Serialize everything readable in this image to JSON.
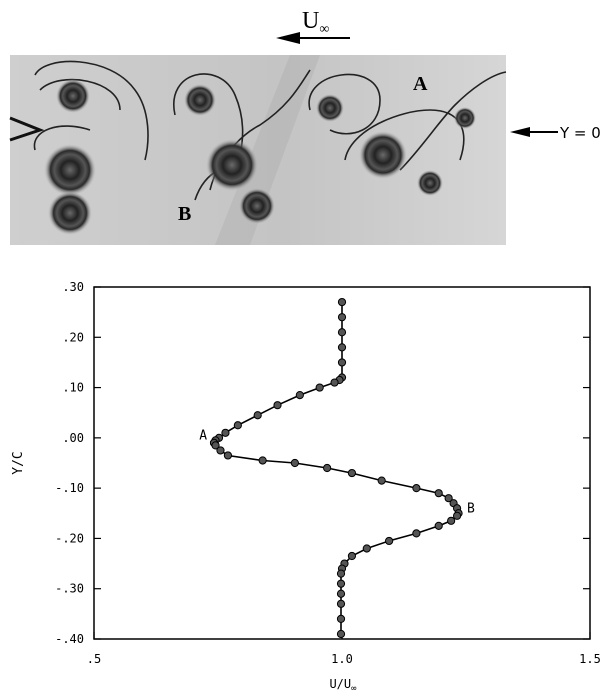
{
  "photo": {
    "freestream_label": "U",
    "freestream_subscript": "∞",
    "label_a": "A",
    "label_b": "B",
    "y0_label": "Y = 0"
  },
  "chart_data": {
    "type": "line",
    "xlabel": "U/U",
    "xlabel_subscript": "∞",
    "ylabel": "Y/C",
    "xlim": [
      0.5,
      1.5
    ],
    "ylim": [
      -0.4,
      0.3
    ],
    "xticks": [
      0.5,
      1.0,
      1.5
    ],
    "xtick_labels": [
      ".5",
      "1.0",
      "1.5"
    ],
    "yticks": [
      0.3,
      0.2,
      0.1,
      0.0,
      -0.1,
      -0.2,
      -0.3,
      -0.4
    ],
    "ytick_labels": [
      ".30",
      ".20",
      ".10",
      ".00",
      "-.10",
      "-.20",
      "-.30",
      "-.40"
    ],
    "grid": false,
    "series": [
      {
        "x": [
          1.0,
          1.0,
          1.0,
          1.0,
          1.0,
          1.0,
          0.995,
          0.985,
          0.955,
          0.915,
          0.87,
          0.83,
          0.79,
          0.765,
          0.752,
          0.745,
          0.742,
          0.742,
          0.745,
          0.755,
          0.77,
          0.84,
          0.905,
          0.97,
          1.02,
          1.08,
          1.15,
          1.195,
          1.215,
          1.225,
          1.232,
          1.235,
          1.232,
          1.22,
          1.195,
          1.15,
          1.095,
          1.05,
          1.02,
          1.005,
          1.0,
          0.998,
          0.998,
          0.998,
          0.998,
          0.998,
          0.998
        ],
        "y": [
          0.27,
          0.24,
          0.21,
          0.18,
          0.15,
          0.12,
          0.115,
          0.11,
          0.1,
          0.085,
          0.065,
          0.045,
          0.025,
          0.01,
          0.0,
          -0.005,
          -0.01,
          -0.01,
          -0.015,
          -0.025,
          -0.035,
          -0.045,
          -0.05,
          -0.06,
          -0.07,
          -0.085,
          -0.1,
          -0.11,
          -0.12,
          -0.13,
          -0.14,
          -0.15,
          -0.155,
          -0.165,
          -0.175,
          -0.19,
          -0.205,
          -0.22,
          -0.235,
          -0.25,
          -0.26,
          -0.27,
          -0.29,
          -0.31,
          -0.33,
          -0.36,
          -0.39
        ]
      }
    ],
    "annotations": [
      {
        "text": "A",
        "x": 0.72,
        "y": 0.005
      },
      {
        "text": "B",
        "x": 1.26,
        "y": -0.14
      }
    ]
  }
}
